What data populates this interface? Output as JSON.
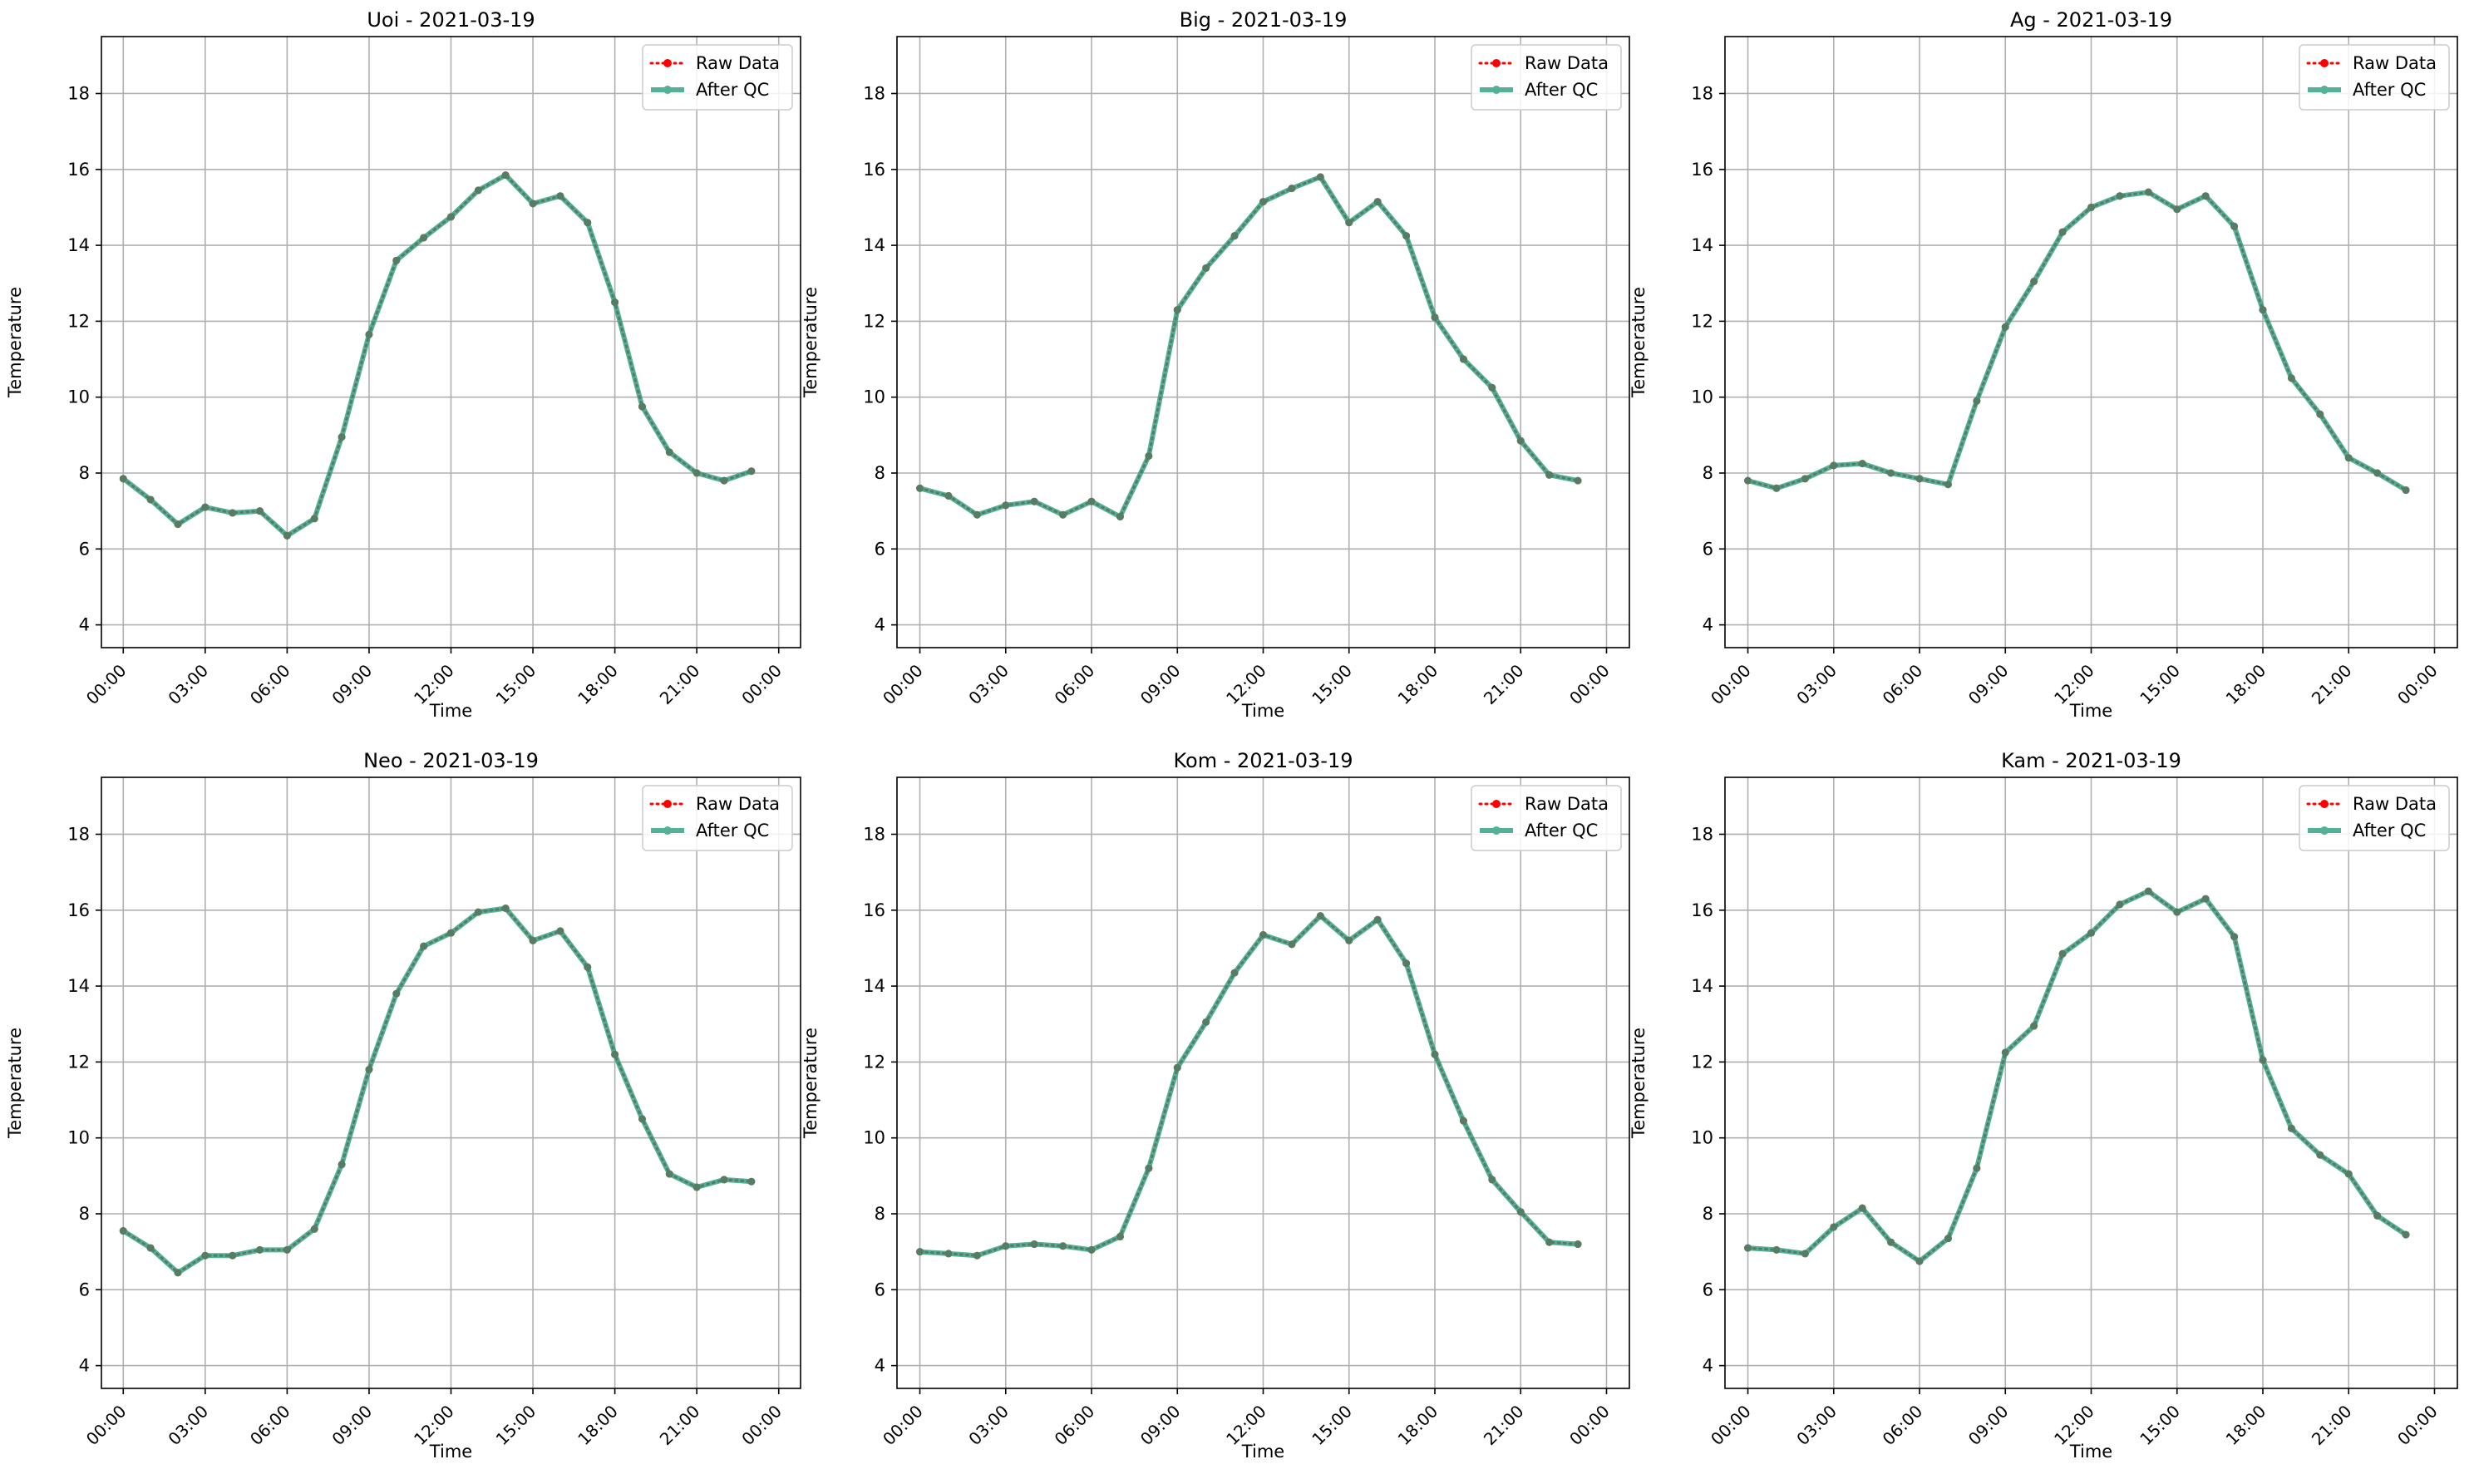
{
  "figure": {
    "series_styles": [
      {
        "name": "Raw Data",
        "color": "#ff0000",
        "line": "dotted",
        "marker": "circle"
      },
      {
        "name": "After QC",
        "color": "#2a9d7c",
        "line": "solid",
        "marker": "circle",
        "alpha": 0.8
      }
    ],
    "grid": true
  },
  "chart_data": [
    {
      "type": "line",
      "title": "Uoi - 2021-03-19",
      "xlabel": "Time",
      "ylabel": "Temperature",
      "x": [
        "00:00",
        "01:00",
        "02:00",
        "03:00",
        "04:00",
        "05:00",
        "06:00",
        "07:00",
        "08:00",
        "09:00",
        "10:00",
        "11:00",
        "12:00",
        "13:00",
        "14:00",
        "15:00",
        "16:00",
        "17:00",
        "18:00",
        "19:00",
        "20:00",
        "21:00",
        "22:00",
        "23:00"
      ],
      "x_ticks": [
        "00:00",
        "03:00",
        "06:00",
        "09:00",
        "12:00",
        "15:00",
        "18:00",
        "21:00",
        "00:00"
      ],
      "ylim": [
        3.4,
        19.5
      ],
      "y_ticks": [
        4,
        6,
        8,
        10,
        12,
        14,
        16,
        18
      ],
      "legend": "top-right",
      "series": [
        {
          "name": "Raw Data",
          "values": [
            7.85,
            7.3,
            6.65,
            7.1,
            6.95,
            7.0,
            6.35,
            6.8,
            8.95,
            11.65,
            13.6,
            14.2,
            14.75,
            15.45,
            15.85,
            15.1,
            15.3,
            14.6,
            12.5,
            9.75,
            8.55,
            8.0,
            7.8,
            8.05
          ]
        },
        {
          "name": "After QC",
          "values": [
            7.85,
            7.3,
            6.65,
            7.1,
            6.95,
            7.0,
            6.35,
            6.8,
            8.95,
            11.65,
            13.6,
            14.2,
            14.75,
            15.45,
            15.85,
            15.1,
            15.3,
            14.6,
            12.5,
            9.75,
            8.55,
            8.0,
            7.8,
            8.05
          ]
        }
      ]
    },
    {
      "type": "line",
      "title": "Big - 2021-03-19",
      "xlabel": "Time",
      "ylabel": "Temperature",
      "x": [
        "00:00",
        "01:00",
        "02:00",
        "03:00",
        "04:00",
        "05:00",
        "06:00",
        "07:00",
        "08:00",
        "09:00",
        "10:00",
        "11:00",
        "12:00",
        "13:00",
        "14:00",
        "15:00",
        "16:00",
        "17:00",
        "18:00",
        "19:00",
        "20:00",
        "21:00",
        "22:00",
        "23:00"
      ],
      "x_ticks": [
        "00:00",
        "03:00",
        "06:00",
        "09:00",
        "12:00",
        "15:00",
        "18:00",
        "21:00",
        "00:00"
      ],
      "ylim": [
        3.4,
        19.5
      ],
      "y_ticks": [
        4,
        6,
        8,
        10,
        12,
        14,
        16,
        18
      ],
      "legend": "top-right",
      "series": [
        {
          "name": "Raw Data",
          "values": [
            7.6,
            7.4,
            6.9,
            7.15,
            7.25,
            6.9,
            7.25,
            6.85,
            8.45,
            12.3,
            13.4,
            14.25,
            15.15,
            15.5,
            15.8,
            14.6,
            15.15,
            14.25,
            12.1,
            11.0,
            10.25,
            8.85,
            7.95,
            7.8
          ]
        },
        {
          "name": "After QC",
          "values": [
            7.6,
            7.4,
            6.9,
            7.15,
            7.25,
            6.9,
            7.25,
            6.85,
            8.45,
            12.3,
            13.4,
            14.25,
            15.15,
            15.5,
            15.8,
            14.6,
            15.15,
            14.25,
            12.1,
            11.0,
            10.25,
            8.85,
            7.95,
            7.8
          ]
        }
      ]
    },
    {
      "type": "line",
      "title": "Ag - 2021-03-19",
      "xlabel": "Time",
      "ylabel": "Temperature",
      "x": [
        "00:00",
        "01:00",
        "02:00",
        "03:00",
        "04:00",
        "05:00",
        "06:00",
        "07:00",
        "08:00",
        "09:00",
        "10:00",
        "11:00",
        "12:00",
        "13:00",
        "14:00",
        "15:00",
        "16:00",
        "17:00",
        "18:00",
        "19:00",
        "20:00",
        "21:00",
        "22:00",
        "23:00"
      ],
      "x_ticks": [
        "00:00",
        "03:00",
        "06:00",
        "09:00",
        "12:00",
        "15:00",
        "18:00",
        "21:00",
        "00:00"
      ],
      "ylim": [
        3.4,
        19.5
      ],
      "y_ticks": [
        4,
        6,
        8,
        10,
        12,
        14,
        16,
        18
      ],
      "legend": "top-right",
      "series": [
        {
          "name": "Raw Data",
          "values": [
            7.8,
            7.6,
            7.85,
            8.2,
            8.25,
            8.0,
            7.85,
            7.7,
            9.9,
            11.85,
            13.05,
            14.35,
            15.0,
            15.3,
            15.4,
            14.95,
            15.3,
            14.5,
            12.3,
            10.5,
            9.55,
            8.4,
            8.0,
            7.55
          ]
        },
        {
          "name": "After QC",
          "values": [
            7.8,
            7.6,
            7.85,
            8.2,
            8.25,
            8.0,
            7.85,
            7.7,
            9.9,
            11.85,
            13.05,
            14.35,
            15.0,
            15.3,
            15.4,
            14.95,
            15.3,
            14.5,
            12.3,
            10.5,
            9.55,
            8.4,
            8.0,
            7.55
          ]
        }
      ]
    },
    {
      "type": "line",
      "title": "Neo - 2021-03-19",
      "xlabel": "Time",
      "ylabel": "Temperature",
      "x": [
        "00:00",
        "01:00",
        "02:00",
        "03:00",
        "04:00",
        "05:00",
        "06:00",
        "07:00",
        "08:00",
        "09:00",
        "10:00",
        "11:00",
        "12:00",
        "13:00",
        "14:00",
        "15:00",
        "16:00",
        "17:00",
        "18:00",
        "19:00",
        "20:00",
        "21:00",
        "22:00",
        "23:00"
      ],
      "x_ticks": [
        "00:00",
        "03:00",
        "06:00",
        "09:00",
        "12:00",
        "15:00",
        "18:00",
        "21:00",
        "00:00"
      ],
      "ylim": [
        3.4,
        19.5
      ],
      "y_ticks": [
        4,
        6,
        8,
        10,
        12,
        14,
        16,
        18
      ],
      "legend": "top-right",
      "series": [
        {
          "name": "Raw Data",
          "values": [
            7.55,
            7.1,
            6.45,
            6.9,
            6.9,
            7.05,
            7.05,
            7.6,
            9.3,
            11.8,
            13.8,
            15.05,
            15.4,
            15.95,
            16.05,
            15.2,
            15.45,
            14.5,
            12.2,
            10.5,
            9.05,
            8.7,
            8.9,
            8.85
          ]
        },
        {
          "name": "After QC",
          "values": [
            7.55,
            7.1,
            6.45,
            6.9,
            6.9,
            7.05,
            7.05,
            7.6,
            9.3,
            11.8,
            13.8,
            15.05,
            15.4,
            15.95,
            16.05,
            15.2,
            15.45,
            14.5,
            12.2,
            10.5,
            9.05,
            8.7,
            8.9,
            8.85
          ]
        }
      ]
    },
    {
      "type": "line",
      "title": "Kom - 2021-03-19",
      "xlabel": "Time",
      "ylabel": "Temperature",
      "x": [
        "00:00",
        "01:00",
        "02:00",
        "03:00",
        "04:00",
        "05:00",
        "06:00",
        "07:00",
        "08:00",
        "09:00",
        "10:00",
        "11:00",
        "12:00",
        "13:00",
        "14:00",
        "15:00",
        "16:00",
        "17:00",
        "18:00",
        "19:00",
        "20:00",
        "21:00",
        "22:00",
        "23:00"
      ],
      "x_ticks": [
        "00:00",
        "03:00",
        "06:00",
        "09:00",
        "12:00",
        "15:00",
        "18:00",
        "21:00",
        "00:00"
      ],
      "ylim": [
        3.4,
        19.5
      ],
      "y_ticks": [
        4,
        6,
        8,
        10,
        12,
        14,
        16,
        18
      ],
      "legend": "top-right",
      "series": [
        {
          "name": "Raw Data",
          "values": [
            7.0,
            6.95,
            6.9,
            7.15,
            7.2,
            7.15,
            7.05,
            7.4,
            9.2,
            11.85,
            13.05,
            14.35,
            15.35,
            15.1,
            15.85,
            15.2,
            15.75,
            14.6,
            12.2,
            10.45,
            8.9,
            8.05,
            7.25,
            7.2
          ]
        },
        {
          "name": "After QC",
          "values": [
            7.0,
            6.95,
            6.9,
            7.15,
            7.2,
            7.15,
            7.05,
            7.4,
            9.2,
            11.85,
            13.05,
            14.35,
            15.35,
            15.1,
            15.85,
            15.2,
            15.75,
            14.6,
            12.2,
            10.45,
            8.9,
            8.05,
            7.25,
            7.2
          ]
        }
      ]
    },
    {
      "type": "line",
      "title": "Kam - 2021-03-19",
      "xlabel": "Time",
      "ylabel": "Temperature",
      "x": [
        "00:00",
        "01:00",
        "02:00",
        "03:00",
        "04:00",
        "05:00",
        "06:00",
        "07:00",
        "08:00",
        "09:00",
        "10:00",
        "11:00",
        "12:00",
        "13:00",
        "14:00",
        "15:00",
        "16:00",
        "17:00",
        "18:00",
        "19:00",
        "20:00",
        "21:00",
        "22:00",
        "23:00"
      ],
      "x_ticks": [
        "00:00",
        "03:00",
        "06:00",
        "09:00",
        "12:00",
        "15:00",
        "18:00",
        "21:00",
        "00:00"
      ],
      "ylim": [
        3.4,
        19.5
      ],
      "y_ticks": [
        4,
        6,
        8,
        10,
        12,
        14,
        16,
        18
      ],
      "legend": "top-right",
      "series": [
        {
          "name": "Raw Data",
          "values": [
            7.1,
            7.05,
            6.95,
            7.65,
            8.15,
            7.25,
            6.75,
            7.35,
            9.2,
            12.25,
            12.95,
            14.85,
            15.4,
            16.15,
            16.5,
            15.95,
            16.3,
            15.3,
            12.05,
            10.25,
            9.55,
            9.05,
            7.95,
            7.45
          ]
        },
        {
          "name": "After QC",
          "values": [
            7.1,
            7.05,
            6.95,
            7.65,
            8.15,
            7.25,
            6.75,
            7.35,
            9.2,
            12.25,
            12.95,
            14.85,
            15.4,
            16.15,
            16.5,
            15.95,
            16.3,
            15.3,
            12.05,
            10.25,
            9.55,
            9.05,
            7.95,
            7.45
          ]
        }
      ]
    }
  ]
}
